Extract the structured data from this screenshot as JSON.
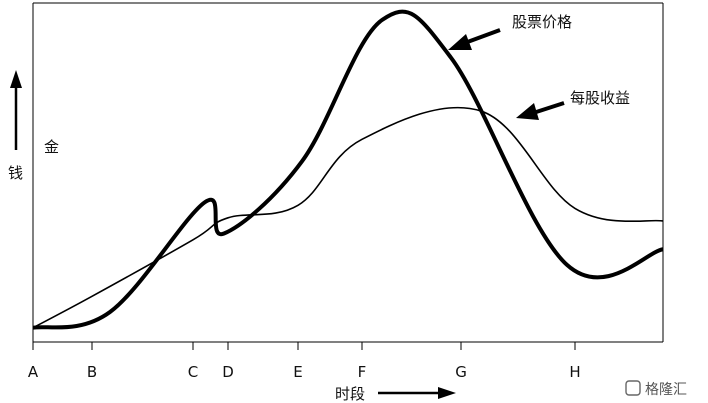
{
  "chart_data": {
    "type": "line",
    "y_axis_label": "钱",
    "y_axis_sublabel": "金",
    "x_axis_label": "时段",
    "x_ticks": [
      "A",
      "B",
      "C",
      "D",
      "E",
      "F",
      "G",
      "H"
    ],
    "grid": false,
    "series": [
      {
        "name": "股票价格",
        "stroke_color": "#000000",
        "points": [
          [
            "A",
            0.02
          ],
          [
            "B",
            0.07
          ],
          [
            "C",
            0.42
          ],
          [
            "D",
            0.32
          ],
          [
            "E",
            0.55
          ],
          [
            "F",
            1.0
          ],
          [
            "G",
            0.88
          ],
          [
            "H",
            0.22
          ],
          [
            "end",
            0.27
          ]
        ]
      },
      {
        "name": "每股收益",
        "stroke_color": "#000000",
        "points": [
          [
            "A",
            0.02
          ],
          [
            "B",
            0.12
          ],
          [
            "C",
            0.3
          ],
          [
            "D",
            0.37
          ],
          [
            "E",
            0.41
          ],
          [
            "F",
            0.62
          ],
          [
            "G",
            0.71
          ],
          [
            "H",
            0.4
          ],
          [
            "end",
            0.36
          ]
        ]
      }
    ]
  },
  "watermark": "格隆汇"
}
